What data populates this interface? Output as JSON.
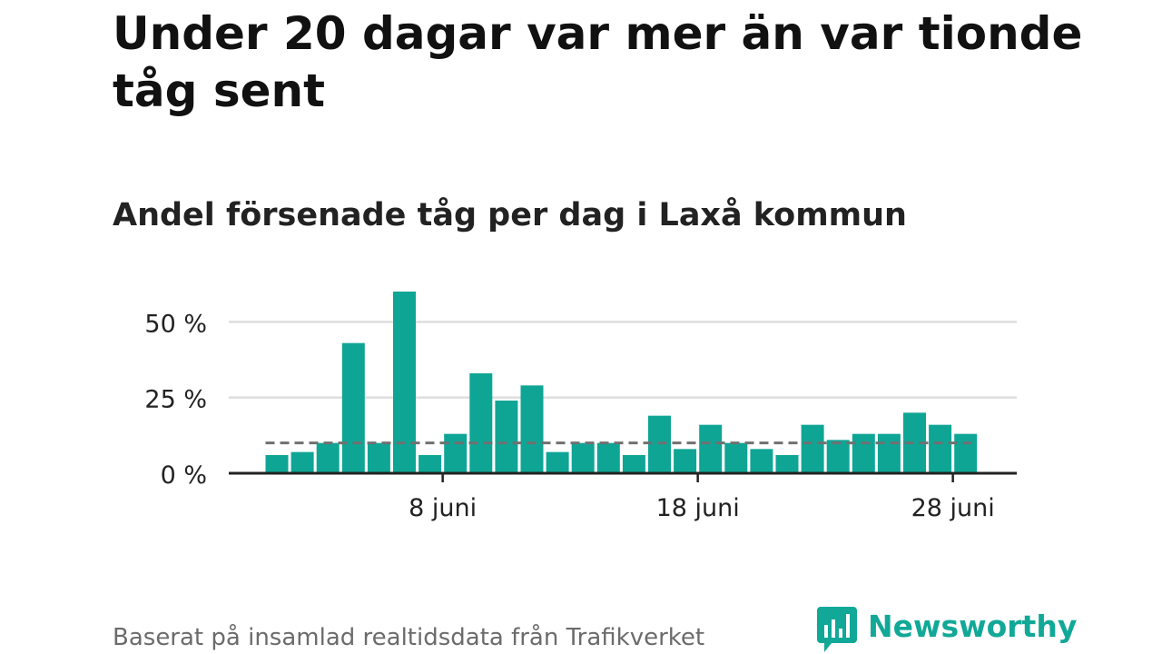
{
  "header": {
    "title": "Under 20 dagar var mer än var tionde tåg sent",
    "subtitle": "Andel försenade tåg per dag i Laxå kommun"
  },
  "footer": {
    "source": "Baserat på insamlad realtidsdata från Trafikverket"
  },
  "brand": {
    "name": "Newsworthy",
    "icon": "newsworthy-logo-icon",
    "color": "#12a897"
  },
  "chart_data": {
    "type": "bar",
    "x": [
      "1 juni",
      "2 juni",
      "3 juni",
      "4 juni",
      "5 juni",
      "6 juni",
      "7 juni",
      "8 juni",
      "9 juni",
      "10 juni",
      "11 juni",
      "12 juni",
      "13 juni",
      "14 juni",
      "15 juni",
      "16 juni",
      "17 juni",
      "18 juni",
      "19 juni",
      "20 juni",
      "21 juni",
      "22 juni",
      "23 juni",
      "24 juni",
      "25 juni",
      "26 juni",
      "27 juni",
      "28 juni",
      "29 juni"
    ],
    "values": [
      6,
      7,
      10,
      43,
      10,
      60,
      6,
      13,
      33,
      24,
      29,
      7,
      10,
      10,
      6,
      19,
      8,
      16,
      10,
      8,
      6,
      16,
      11,
      13,
      13,
      20,
      16,
      13,
      0
    ],
    "ylim": [
      0,
      60
    ],
    "yticks": [
      0,
      25,
      50
    ],
    "ytick_labels": [
      "0 %",
      "25 %",
      "50 %"
    ],
    "xtick_labels": [
      "8 juni",
      "18 juni",
      "28 juni"
    ],
    "xtick_dates": [
      "8 juni",
      "18 juni",
      "28 juni"
    ],
    "reference_line": 10,
    "grid": true,
    "legend": "none",
    "colors": {
      "bar": "#0fa595",
      "reference_line": "#707070",
      "grid": "#dddddd",
      "axis": "#222222"
    }
  }
}
